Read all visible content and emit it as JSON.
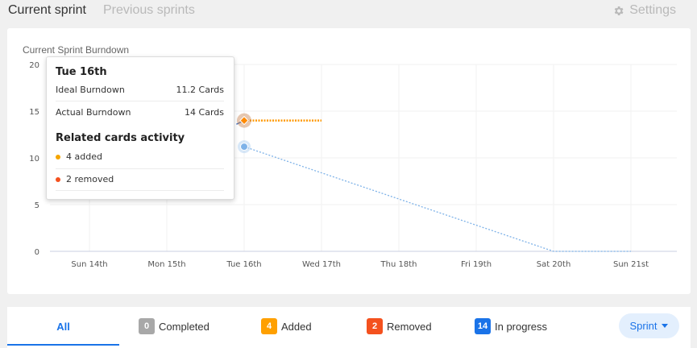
{
  "header": {
    "tabs": [
      {
        "label": "Current sprint",
        "active": true
      },
      {
        "label": "Previous sprints",
        "active": false
      }
    ],
    "settings_label": "Settings",
    "settings_icon": "gear-icon"
  },
  "chart_data": {
    "type": "line",
    "title": "Current Sprint Burndown",
    "categories": [
      "Sun 14th",
      "Mon 15th",
      "Tue 16th",
      "Wed 17th",
      "Thu 18th",
      "Fri 19th",
      "Sat 20th",
      "Sun 21st"
    ],
    "ylim": [
      0,
      20
    ],
    "yticks": [
      0,
      5,
      10,
      15,
      20
    ],
    "grid": true,
    "series": [
      {
        "name": "Ideal Burndown",
        "color": "#7eb2e8",
        "style": "dotted",
        "x": [
          2,
          3,
          4,
          5,
          6,
          7
        ],
        "values": [
          11.2,
          8.4,
          5.6,
          2.8,
          0,
          0
        ]
      },
      {
        "name": "Actual Burndown",
        "color": "#ff9800",
        "style": "dotted",
        "x": [
          2,
          3
        ],
        "values": [
          14,
          14
        ]
      },
      {
        "name": "Actual Burndown",
        "color": "#3f6fbf",
        "style": "solid",
        "x": [
          1.9,
          2
        ],
        "values": [
          13.6,
          14
        ]
      }
    ],
    "highlight_index": 2
  },
  "tooltip": {
    "date": "Tue 16th",
    "rows": [
      {
        "label": "Ideal Burndown",
        "value": "11.2 Cards"
      },
      {
        "label": "Actual Burndown",
        "value": "14 Cards"
      }
    ],
    "activity_title": "Related cards activity",
    "activity": [
      {
        "text": "4 added",
        "color": "#f5a500"
      },
      {
        "text": "2 removed",
        "color": "#f4511e"
      }
    ]
  },
  "filters": {
    "all_label": "All",
    "items": [
      {
        "count": "0",
        "label": "Completed",
        "color": "#a8a8a8"
      },
      {
        "count": "4",
        "label": "Added",
        "color": "#ffa000"
      },
      {
        "count": "2",
        "label": "Removed",
        "color": "#f4511e"
      },
      {
        "count": "14",
        "label": "In progress",
        "color": "#1a73e8"
      }
    ],
    "sprint_label": "Sprint"
  }
}
